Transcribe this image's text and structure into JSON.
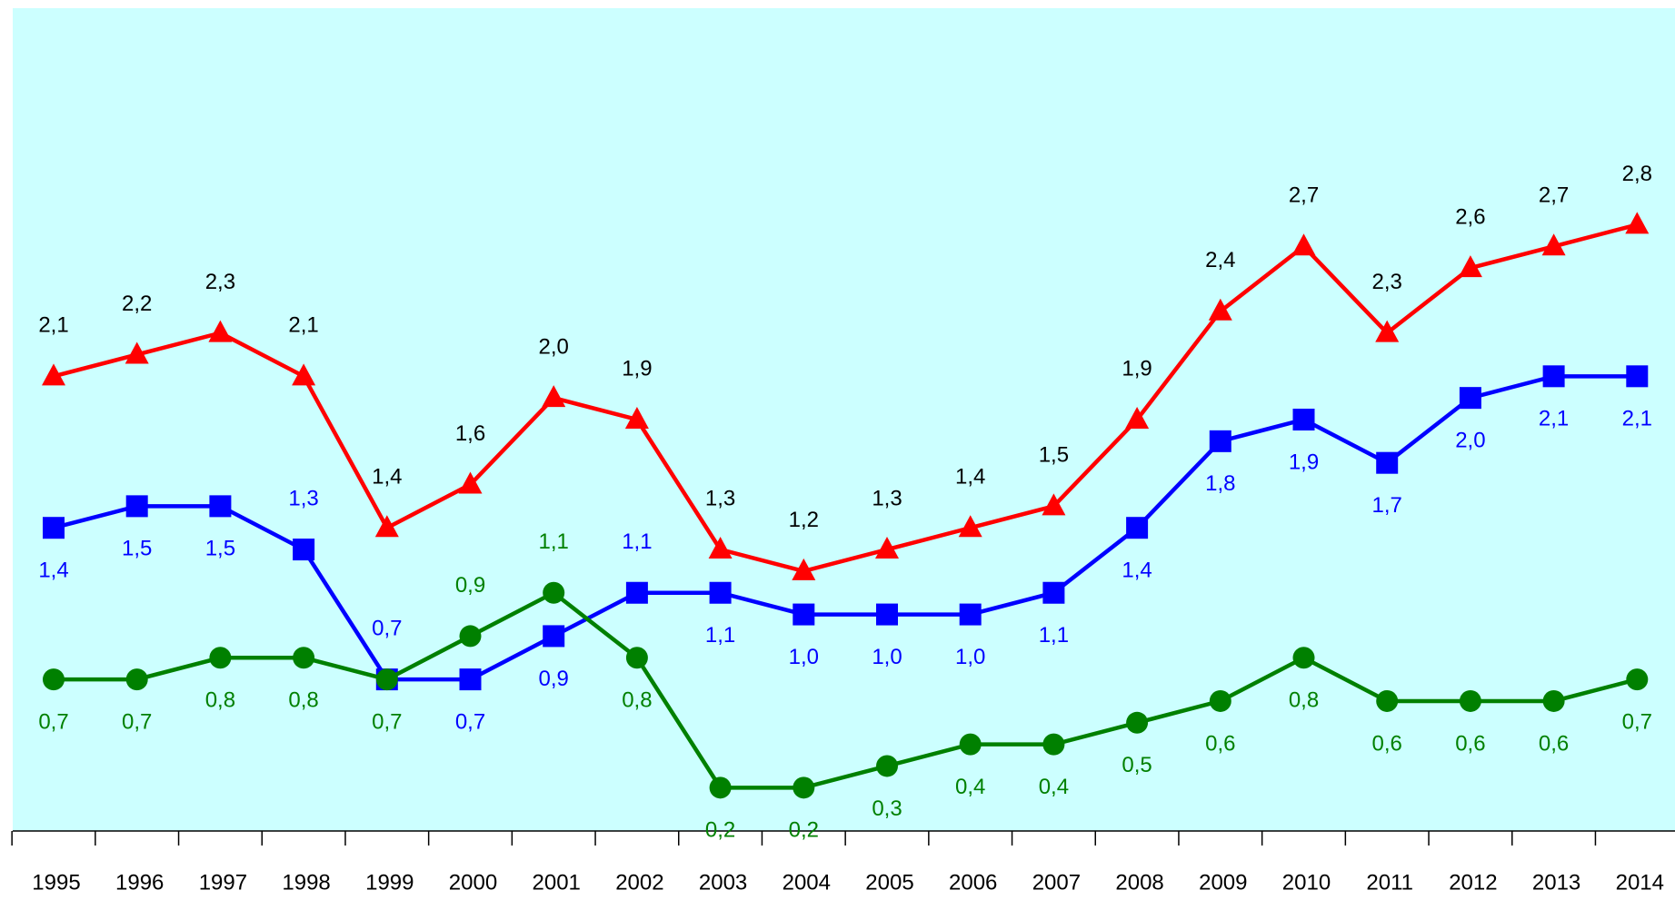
{
  "chart_data": {
    "type": "line",
    "categories": [
      "1995",
      "1996",
      "1997",
      "1998",
      "1999",
      "2000",
      "2001",
      "2002",
      "2003",
      "2004",
      "2005",
      "2006",
      "2007",
      "2008",
      "2009",
      "2010",
      "2011",
      "2012",
      "2013",
      "2014"
    ],
    "series": [
      {
        "color": "#ff0000",
        "marker": "triangle",
        "label_color": "#000000",
        "values": [
          2.1,
          2.2,
          2.3,
          2.1,
          1.4,
          1.6,
          2.0,
          1.9,
          1.3,
          1.2,
          1.3,
          1.4,
          1.5,
          1.9,
          2.4,
          2.7,
          2.3,
          2.6,
          2.7,
          2.8
        ],
        "value_labels": [
          "2,1",
          "2,2",
          "2,3",
          "2,1",
          "1,4",
          "1,6",
          "2,0",
          "1,9",
          "1,3",
          "1,2",
          "1,3",
          "1,4",
          "1,5",
          "1,9",
          "2,4",
          "2,7",
          "2,3",
          "2,6",
          "2,7",
          "2,8"
        ]
      },
      {
        "color": "#0000ff",
        "marker": "square",
        "label_color": "#0000ff",
        "values": [
          1.4,
          1.5,
          1.5,
          1.3,
          0.7,
          0.7,
          0.9,
          1.1,
          1.1,
          1.0,
          1.0,
          1.0,
          1.1,
          1.4,
          1.8,
          1.9,
          1.7,
          2.0,
          2.1,
          2.1
        ],
        "value_labels": [
          "1,4",
          "1,5",
          "1,5",
          "1,3",
          "0,7",
          "0,7",
          "0,9",
          "1,1",
          "1,1",
          "1,0",
          "1,0",
          "1,0",
          "1,1",
          "1,4",
          "1,8",
          "1,9",
          "1,7",
          "2,0",
          "2,1",
          "2,1"
        ]
      },
      {
        "color": "#008000",
        "marker": "circle",
        "label_color": "#008000",
        "values": [
          0.7,
          0.7,
          0.8,
          0.8,
          0.7,
          0.9,
          1.1,
          0.8,
          0.2,
          0.2,
          0.3,
          0.4,
          0.4,
          0.5,
          0.6,
          0.8,
          0.6,
          0.6,
          0.6,
          0.7
        ],
        "value_labels": [
          "0,7",
          "0,7",
          "0,8",
          "0,8",
          "0,7",
          "0,9",
          "1,1",
          "0,8",
          "0,2",
          "0,2",
          "0,3",
          "0,4",
          "0,4",
          "0,5",
          "0,6",
          "0,8",
          "0,6",
          "0,6",
          "0,6",
          "0,7"
        ]
      }
    ],
    "ylim": [
      0,
      3.8
    ]
  }
}
